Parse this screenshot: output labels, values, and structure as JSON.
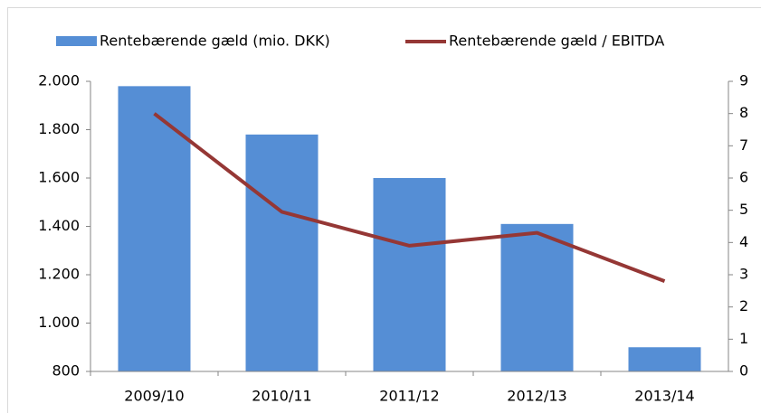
{
  "chart_data": {
    "type": "bar-line",
    "categories": [
      "2009/10",
      "2010/11",
      "2011/12",
      "2012/13",
      "2013/14"
    ],
    "series": [
      {
        "name": "Rentebærende gæld (mio. DKK)",
        "color": "#558ed5",
        "type": "bar",
        "values": [
          1980,
          1780,
          1600,
          1410,
          900
        ]
      },
      {
        "name": "Rentebærende gæld / EBITDA",
        "color": "#953735",
        "type": "line",
        "axis": "y2",
        "values": [
          8.0,
          4.95,
          3.9,
          4.3,
          2.8
        ]
      }
    ],
    "ylim": [
      800,
      2000
    ],
    "yticks": [
      800,
      {
        "value": 1000,
        "label": "1.000"
      },
      {
        "value": 1200,
        "label": "1.200"
      },
      {
        "value": 1400,
        "label": "1.400"
      },
      {
        "value": 1600,
        "label": "1.600"
      },
      {
        "value": 1800,
        "label": "1.800"
      },
      {
        "value": 2000,
        "label": "2.000"
      }
    ],
    "y2lim": [
      0,
      9
    ],
    "y2ticks": [
      0,
      1,
      2,
      3,
      4,
      5,
      6,
      7,
      8,
      9
    ],
    "legend": "top"
  }
}
